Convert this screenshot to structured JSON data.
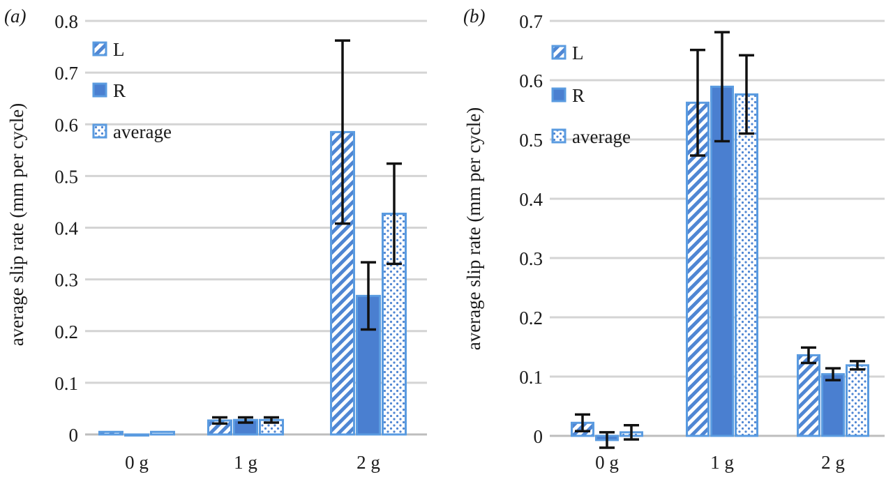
{
  "colors": {
    "bar_fill": "#4a7fd0",
    "bar_stroke": "#5a9be0",
    "error_bar": "#111111",
    "grid": "#d4d4d4"
  },
  "chart_data": [
    {
      "type": "bar",
      "panel_label": "(a)",
      "ylabel": "average slip rate (mm per cycle)",
      "xlabel": "",
      "ylim": [
        0,
        0.8
      ],
      "yticks": [
        0,
        0.1,
        0.2,
        0.3,
        0.4,
        0.5,
        0.6,
        0.7,
        0.8
      ],
      "ytick_labels": [
        "0",
        "0.1",
        "0.2",
        "0.3",
        "0.4",
        "0.5",
        "0.6",
        "0.7",
        "0.8"
      ],
      "grid": true,
      "legend_position": "top-left",
      "categories": [
        "0 g",
        "1 g",
        "2 g"
      ],
      "series": [
        {
          "name": "L",
          "pattern": "hatched",
          "values": [
            0.005,
            0.027,
            0.585
          ],
          "errors": [
            0.0,
            0.006,
            0.177
          ]
        },
        {
          "name": "R",
          "pattern": "solid",
          "values": [
            -0.002,
            0.028,
            0.268
          ],
          "errors": [
            0.0,
            0.005,
            0.065
          ]
        },
        {
          "name": "average",
          "pattern": "dotted",
          "values": [
            0.005,
            0.028,
            0.427
          ],
          "errors": [
            0.0,
            0.005,
            0.097
          ]
        }
      ]
    },
    {
      "type": "bar",
      "panel_label": "(b)",
      "ylabel": "average slip rate (mm per cycle)",
      "xlabel": "",
      "ylim": [
        0,
        0.7
      ],
      "yticks": [
        0,
        0.1,
        0.2,
        0.3,
        0.4,
        0.5,
        0.6,
        0.7
      ],
      "ytick_labels": [
        "0",
        "0.1",
        "0.2",
        "0.3",
        "0.4",
        "0.5",
        "0.6",
        "0.7"
      ],
      "grid": true,
      "legend_position": "top-left",
      "categories": [
        "0 g",
        "1 g",
        "2 g"
      ],
      "series": [
        {
          "name": "L",
          "pattern": "hatched",
          "values": [
            0.022,
            0.562,
            0.136
          ],
          "errors": [
            0.014,
            0.089,
            0.013
          ]
        },
        {
          "name": "R",
          "pattern": "solid",
          "values": [
            -0.007,
            0.589,
            0.104
          ],
          "errors": [
            0.013,
            0.092,
            0.01
          ]
        },
        {
          "name": "average",
          "pattern": "dotted",
          "values": [
            0.006,
            0.576,
            0.119
          ],
          "errors": [
            0.012,
            0.066,
            0.007
          ]
        }
      ]
    }
  ]
}
